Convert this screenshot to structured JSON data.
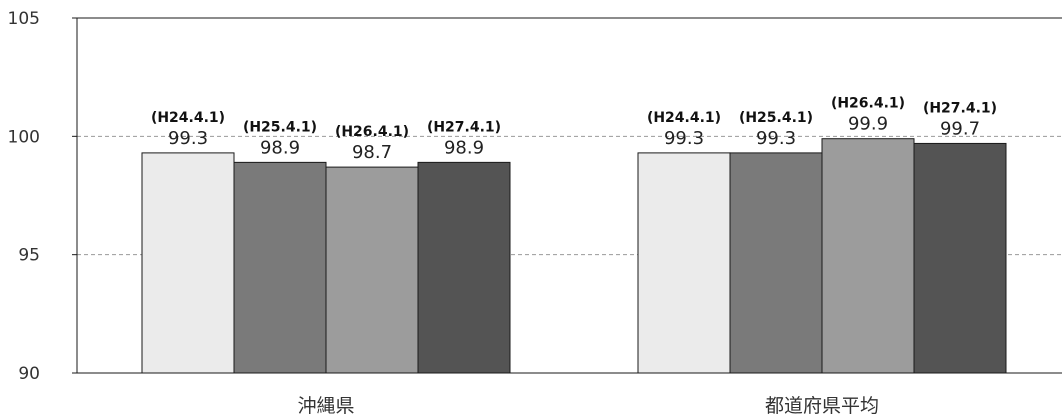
{
  "chart_data": {
    "type": "bar",
    "categories": [
      "沖縄県",
      "都道府県平均"
    ],
    "series": [
      {
        "values": [
          99.3,
          99.3
        ],
        "labels": [
          "(H24.4.1)",
          "(H24.4.1)"
        ],
        "color": "#ebebeb"
      },
      {
        "values": [
          98.9,
          99.3
        ],
        "labels": [
          "(H25.4.1)",
          "(H25.4.1)"
        ],
        "color": "#7a7a7a"
      },
      {
        "values": [
          98.7,
          99.9
        ],
        "labels": [
          "(H26.4.1)",
          "(H26.4.1)"
        ],
        "color": "#9c9c9c"
      },
      {
        "values": [
          98.9,
          99.7
        ],
        "labels": [
          "(H27.4.1)",
          "(H27.4.1)"
        ],
        "color": "#545454"
      }
    ],
    "ylim": [
      90,
      105
    ],
    "yticks": [
      90,
      95,
      100,
      105
    ],
    "gridlines": [
      95,
      100
    ],
    "grid": true,
    "legend": "none",
    "title": "",
    "xlabel": "",
    "ylabel": ""
  }
}
